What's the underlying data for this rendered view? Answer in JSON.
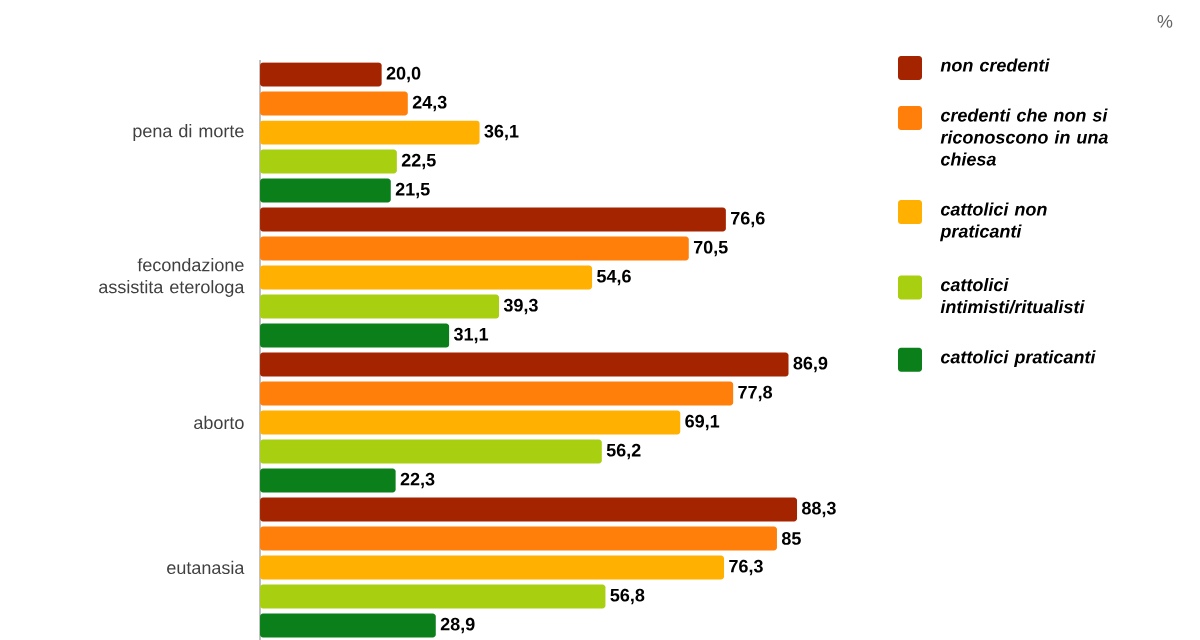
{
  "chart_data": {
    "type": "bar",
    "orientation": "horizontal",
    "categories": [
      "pena di morte",
      "fecondazione assistita eterologa",
      "aborto",
      "eutanasia"
    ],
    "series": [
      {
        "name": "non credenti",
        "color": "#a52400",
        "values": [
          20.0,
          76.6,
          86.9,
          88.3
        ],
        "value_labels": [
          "20,0",
          "76,6",
          "86,9",
          "88,3"
        ]
      },
      {
        "name": "credenti che non si riconoscono in una chiesa",
        "color": "#ff7f0a",
        "values": [
          24.3,
          70.5,
          77.8,
          85
        ],
        "value_labels": [
          "24,3",
          "70,5",
          "77,8",
          "85"
        ]
      },
      {
        "name": "cattolici non praticanti",
        "color": "#ffb000",
        "values": [
          36.1,
          54.6,
          69.1,
          76.3
        ],
        "value_labels": [
          "36,1",
          "54,6",
          "69,1",
          "76,3"
        ]
      },
      {
        "name": "cattolici intimisti/ritualisti",
        "color": "#a8d010",
        "values": [
          22.5,
          39.3,
          56.2,
          56.8
        ],
        "value_labels": [
          "22,5",
          "39,3",
          "56,2",
          "56,8"
        ]
      },
      {
        "name": "cattolici praticanti",
        "color": "#0b7f1a",
        "values": [
          21.5,
          31.1,
          22.3,
          28.9
        ],
        "value_labels": [
          "21,5",
          "31,1",
          "22,3",
          "28,9"
        ]
      }
    ],
    "legend": "right",
    "annotations": [
      "%"
    ]
  }
}
